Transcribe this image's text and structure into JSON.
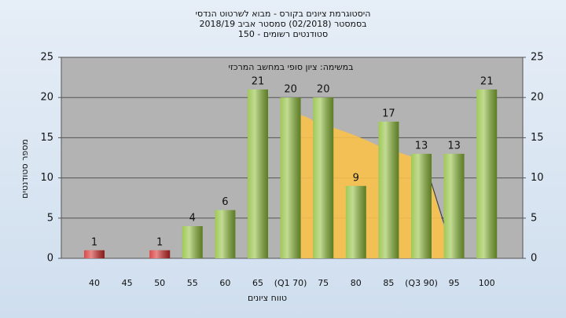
{
  "chart_data": {
    "type": "bar",
    "title": "היסטוגרמת ציונים בקורס - מבוא לשרטוט הנדסי",
    "subtitle": "בסמסטר  (02/2018)  סמסטר אביב 2018/19",
    "subtitle2": "סטודנטים רשומים - 150",
    "annotation": "במשימה: ציון סופי במחשב המרכזי",
    "x_label": "טווח ציונים",
    "y_label": "מספר סטודנטים",
    "categories": [
      "40",
      "45",
      "50",
      "55",
      "60",
      "65",
      "(Q1 70)",
      "75",
      "80",
      "85",
      "(Q3 90)",
      "95",
      "100"
    ],
    "values": [
      1,
      null,
      1,
      4,
      6,
      21,
      20,
      20,
      9,
      17,
      13,
      13,
      21
    ],
    "colors": [
      "#d42a2a",
      "#d42a2a",
      "#d42a2a",
      "#8fbf3a",
      "#8fbf3a",
      "#8fbf3a",
      "#8fbf3a",
      "#8fbf3a",
      "#8fbf3a",
      "#8fbf3a",
      "#8fbf3a",
      "#8fbf3a",
      "#8fbf3a"
    ],
    "ylim": [
      0,
      25
    ],
    "yticks": [
      0,
      5,
      10,
      15,
      20,
      25
    ],
    "y2lim": [
      0,
      25
    ],
    "y2ticks": [
      0,
      5,
      10,
      15,
      20,
      25
    ],
    "grid": true
  }
}
